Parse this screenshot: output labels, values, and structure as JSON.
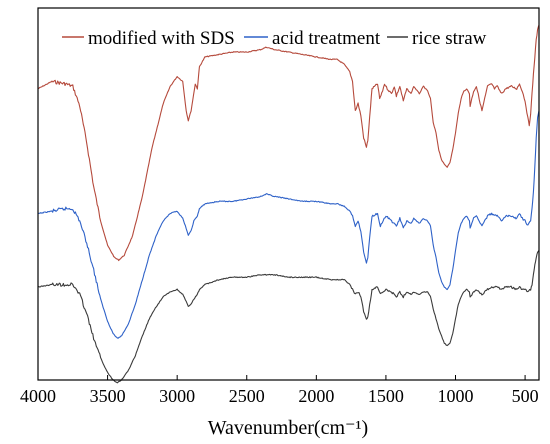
{
  "chart_data": {
    "type": "line",
    "x_axis": {
      "label": "Wavenumber(cm⁻¹)",
      "range": [
        4000,
        400
      ],
      "reversed": true,
      "ticks": [
        4000,
        3500,
        3000,
        2500,
        2000,
        1500,
        1000,
        500
      ],
      "tick_labels": [
        "4000",
        "3500",
        "3000",
        "2500",
        "2000",
        "1500",
        "1000",
        "500"
      ]
    },
    "y_axis": {
      "label": "",
      "ticks_shown": false
    },
    "grid": false,
    "legend_position": "top",
    "y_range": [
      -0.17,
      1.35
    ],
    "series": [
      {
        "name": "modified with SDS",
        "color": "#b54a3c",
        "points": [
          [
            4000,
            1.02
          ],
          [
            3900,
            1.05
          ],
          [
            3800,
            1.04
          ],
          [
            3750,
            1.03
          ],
          [
            3700,
            0.95
          ],
          [
            3650,
            0.8
          ],
          [
            3600,
            0.62
          ],
          [
            3550,
            0.48
          ],
          [
            3500,
            0.38
          ],
          [
            3450,
            0.33
          ],
          [
            3420,
            0.32
          ],
          [
            3380,
            0.34
          ],
          [
            3320,
            0.42
          ],
          [
            3250,
            0.58
          ],
          [
            3180,
            0.78
          ],
          [
            3100,
            0.96
          ],
          [
            3050,
            1.03
          ],
          [
            3000,
            1.07
          ],
          [
            2960,
            1.05
          ],
          [
            2935,
            0.93
          ],
          [
            2920,
            0.89
          ],
          [
            2900,
            0.93
          ],
          [
            2870,
            1.04
          ],
          [
            2855,
            1.02
          ],
          [
            2840,
            1.11
          ],
          [
            2800,
            1.15
          ],
          [
            2700,
            1.16
          ],
          [
            2600,
            1.17
          ],
          [
            2500,
            1.17
          ],
          [
            2400,
            1.18
          ],
          [
            2360,
            1.19
          ],
          [
            2300,
            1.18
          ],
          [
            2200,
            1.17
          ],
          [
            2100,
            1.16
          ],
          [
            2000,
            1.15
          ],
          [
            1900,
            1.14
          ],
          [
            1850,
            1.14
          ],
          [
            1800,
            1.12
          ],
          [
            1760,
            1.09
          ],
          [
            1740,
            1.05
          ],
          [
            1720,
            0.93
          ],
          [
            1700,
            0.96
          ],
          [
            1680,
            0.91
          ],
          [
            1660,
            0.82
          ],
          [
            1640,
            0.78
          ],
          [
            1630,
            0.81
          ],
          [
            1610,
            0.95
          ],
          [
            1600,
            1.02
          ],
          [
            1560,
            1.04
          ],
          [
            1545,
            0.98
          ],
          [
            1530,
            1.0
          ],
          [
            1510,
            1.04
          ],
          [
            1490,
            1.02
          ],
          [
            1460,
            1.0
          ],
          [
            1440,
            1.03
          ],
          [
            1425,
            0.99
          ],
          [
            1400,
            1.03
          ],
          [
            1375,
            0.97
          ],
          [
            1350,
            1.02
          ],
          [
            1320,
            1.0
          ],
          [
            1300,
            1.03
          ],
          [
            1260,
            1.0
          ],
          [
            1230,
            1.03
          ],
          [
            1200,
            1.01
          ],
          [
            1180,
            0.98
          ],
          [
            1160,
            0.88
          ],
          [
            1140,
            0.84
          ],
          [
            1120,
            0.77
          ],
          [
            1100,
            0.73
          ],
          [
            1080,
            0.71
          ],
          [
            1060,
            0.7
          ],
          [
            1040,
            0.72
          ],
          [
            1020,
            0.77
          ],
          [
            1000,
            0.84
          ],
          [
            980,
            0.92
          ],
          [
            960,
            0.98
          ],
          [
            940,
            1.01
          ],
          [
            920,
            1.02
          ],
          [
            900,
            1.0
          ],
          [
            895,
            0.95
          ],
          [
            870,
            1.01
          ],
          [
            850,
            1.03
          ],
          [
            830,
            0.98
          ],
          [
            810,
            0.93
          ],
          [
            790,
            0.98
          ],
          [
            770,
            1.03
          ],
          [
            740,
            1.04
          ],
          [
            720,
            1.02
          ],
          [
            700,
            1.03
          ],
          [
            670,
            1.0
          ],
          [
            640,
            1.02
          ],
          [
            600,
            1.03
          ],
          [
            560,
            1.02
          ],
          [
            540,
            1.04
          ],
          [
            520,
            1.01
          ],
          [
            500,
            0.97
          ],
          [
            480,
            0.9
          ],
          [
            470,
            0.87
          ],
          [
            460,
            0.92
          ],
          [
            450,
            1.0
          ],
          [
            440,
            1.08
          ],
          [
            430,
            1.15
          ],
          [
            420,
            1.22
          ],
          [
            410,
            1.26
          ],
          [
            400,
            1.28
          ]
        ]
      },
      {
        "name": "acid treatment",
        "color": "#2f62c8",
        "points": [
          [
            4000,
            0.51
          ],
          [
            3900,
            0.52
          ],
          [
            3800,
            0.53
          ],
          [
            3750,
            0.53
          ],
          [
            3700,
            0.48
          ],
          [
            3650,
            0.39
          ],
          [
            3600,
            0.28
          ],
          [
            3550,
            0.16
          ],
          [
            3500,
            0.07
          ],
          [
            3460,
            0.02
          ],
          [
            3430,
            0.0
          ],
          [
            3400,
            0.01
          ],
          [
            3350,
            0.06
          ],
          [
            3300,
            0.14
          ],
          [
            3250,
            0.24
          ],
          [
            3200,
            0.34
          ],
          [
            3150,
            0.42
          ],
          [
            3100,
            0.48
          ],
          [
            3050,
            0.51
          ],
          [
            3000,
            0.52
          ],
          [
            2960,
            0.49
          ],
          [
            2935,
            0.45
          ],
          [
            2920,
            0.42
          ],
          [
            2900,
            0.44
          ],
          [
            2880,
            0.48
          ],
          [
            2855,
            0.5
          ],
          [
            2840,
            0.53
          ],
          [
            2800,
            0.55
          ],
          [
            2700,
            0.56
          ],
          [
            2600,
            0.56
          ],
          [
            2500,
            0.57
          ],
          [
            2400,
            0.58
          ],
          [
            2360,
            0.59
          ],
          [
            2300,
            0.58
          ],
          [
            2200,
            0.57
          ],
          [
            2100,
            0.56
          ],
          [
            2000,
            0.56
          ],
          [
            1900,
            0.55
          ],
          [
            1850,
            0.55
          ],
          [
            1800,
            0.54
          ],
          [
            1760,
            0.52
          ],
          [
            1740,
            0.5
          ],
          [
            1720,
            0.46
          ],
          [
            1700,
            0.48
          ],
          [
            1680,
            0.44
          ],
          [
            1660,
            0.35
          ],
          [
            1640,
            0.31
          ],
          [
            1630,
            0.33
          ],
          [
            1610,
            0.45
          ],
          [
            1600,
            0.5
          ],
          [
            1560,
            0.51
          ],
          [
            1540,
            0.46
          ],
          [
            1520,
            0.48
          ],
          [
            1500,
            0.5
          ],
          [
            1460,
            0.48
          ],
          [
            1425,
            0.46
          ],
          [
            1400,
            0.49
          ],
          [
            1375,
            0.45
          ],
          [
            1350,
            0.48
          ],
          [
            1320,
            0.47
          ],
          [
            1300,
            0.49
          ],
          [
            1260,
            0.47
          ],
          [
            1230,
            0.49
          ],
          [
            1200,
            0.48
          ],
          [
            1180,
            0.46
          ],
          [
            1160,
            0.38
          ],
          [
            1140,
            0.33
          ],
          [
            1120,
            0.27
          ],
          [
            1100,
            0.23
          ],
          [
            1080,
            0.21
          ],
          [
            1060,
            0.2
          ],
          [
            1040,
            0.22
          ],
          [
            1020,
            0.28
          ],
          [
            1000,
            0.36
          ],
          [
            980,
            0.43
          ],
          [
            960,
            0.47
          ],
          [
            940,
            0.49
          ],
          [
            920,
            0.5
          ],
          [
            900,
            0.48
          ],
          [
            895,
            0.45
          ],
          [
            870,
            0.49
          ],
          [
            850,
            0.5
          ],
          [
            830,
            0.48
          ],
          [
            810,
            0.46
          ],
          [
            790,
            0.48
          ],
          [
            770,
            0.5
          ],
          [
            740,
            0.51
          ],
          [
            700,
            0.5
          ],
          [
            670,
            0.48
          ],
          [
            640,
            0.5
          ],
          [
            600,
            0.5
          ],
          [
            560,
            0.49
          ],
          [
            540,
            0.51
          ],
          [
            520,
            0.49
          ],
          [
            500,
            0.48
          ],
          [
            480,
            0.46
          ],
          [
            460,
            0.48
          ],
          [
            450,
            0.53
          ],
          [
            440,
            0.6
          ],
          [
            430,
            0.7
          ],
          [
            420,
            0.82
          ],
          [
            410,
            0.9
          ],
          [
            400,
            0.93
          ]
        ]
      },
      {
        "name": "rice straw",
        "color": "#3b3b3b",
        "points": [
          [
            4000,
            0.21
          ],
          [
            3900,
            0.22
          ],
          [
            3800,
            0.22
          ],
          [
            3750,
            0.22
          ],
          [
            3700,
            0.18
          ],
          [
            3650,
            0.1
          ],
          [
            3600,
            0.0
          ],
          [
            3550,
            -0.08
          ],
          [
            3500,
            -0.14
          ],
          [
            3460,
            -0.17
          ],
          [
            3430,
            -0.18
          ],
          [
            3400,
            -0.17
          ],
          [
            3350,
            -0.13
          ],
          [
            3300,
            -0.07
          ],
          [
            3250,
            0.01
          ],
          [
            3200,
            0.08
          ],
          [
            3150,
            0.13
          ],
          [
            3100,
            0.17
          ],
          [
            3050,
            0.19
          ],
          [
            3000,
            0.2
          ],
          [
            2960,
            0.18
          ],
          [
            2935,
            0.15
          ],
          [
            2920,
            0.13
          ],
          [
            2900,
            0.14
          ],
          [
            2880,
            0.16
          ],
          [
            2855,
            0.18
          ],
          [
            2840,
            0.2
          ],
          [
            2800,
            0.22
          ],
          [
            2700,
            0.24
          ],
          [
            2600,
            0.25
          ],
          [
            2500,
            0.25
          ],
          [
            2400,
            0.26
          ],
          [
            2360,
            0.26
          ],
          [
            2300,
            0.26
          ],
          [
            2200,
            0.25
          ],
          [
            2100,
            0.25
          ],
          [
            2000,
            0.25
          ],
          [
            1900,
            0.24
          ],
          [
            1850,
            0.24
          ],
          [
            1800,
            0.24
          ],
          [
            1760,
            0.22
          ],
          [
            1740,
            0.2
          ],
          [
            1720,
            0.18
          ],
          [
            1700,
            0.19
          ],
          [
            1680,
            0.17
          ],
          [
            1660,
            0.11
          ],
          [
            1640,
            0.08
          ],
          [
            1630,
            0.09
          ],
          [
            1610,
            0.16
          ],
          [
            1600,
            0.2
          ],
          [
            1560,
            0.21
          ],
          [
            1540,
            0.18
          ],
          [
            1520,
            0.19
          ],
          [
            1500,
            0.2
          ],
          [
            1460,
            0.19
          ],
          [
            1425,
            0.17
          ],
          [
            1400,
            0.19
          ],
          [
            1375,
            0.17
          ],
          [
            1350,
            0.19
          ],
          [
            1320,
            0.18
          ],
          [
            1300,
            0.19
          ],
          [
            1260,
            0.18
          ],
          [
            1230,
            0.19
          ],
          [
            1200,
            0.19
          ],
          [
            1180,
            0.17
          ],
          [
            1160,
            0.12
          ],
          [
            1140,
            0.08
          ],
          [
            1120,
            0.04
          ],
          [
            1100,
            0.01
          ],
          [
            1080,
            -0.02
          ],
          [
            1060,
            -0.03
          ],
          [
            1040,
            -0.02
          ],
          [
            1020,
            0.02
          ],
          [
            1000,
            0.08
          ],
          [
            980,
            0.14
          ],
          [
            960,
            0.17
          ],
          [
            940,
            0.19
          ],
          [
            920,
            0.2
          ],
          [
            900,
            0.19
          ],
          [
            895,
            0.17
          ],
          [
            870,
            0.19
          ],
          [
            850,
            0.2
          ],
          [
            830,
            0.19
          ],
          [
            810,
            0.18
          ],
          [
            790,
            0.19
          ],
          [
            770,
            0.2
          ],
          [
            740,
            0.21
          ],
          [
            700,
            0.21
          ],
          [
            670,
            0.2
          ],
          [
            640,
            0.21
          ],
          [
            600,
            0.21
          ],
          [
            560,
            0.2
          ],
          [
            540,
            0.21
          ],
          [
            520,
            0.2
          ],
          [
            500,
            0.2
          ],
          [
            480,
            0.19
          ],
          [
            460,
            0.2
          ],
          [
            450,
            0.22
          ],
          [
            440,
            0.26
          ],
          [
            430,
            0.3
          ],
          [
            420,
            0.33
          ],
          [
            410,
            0.35
          ],
          [
            400,
            0.36
          ]
        ]
      }
    ]
  }
}
